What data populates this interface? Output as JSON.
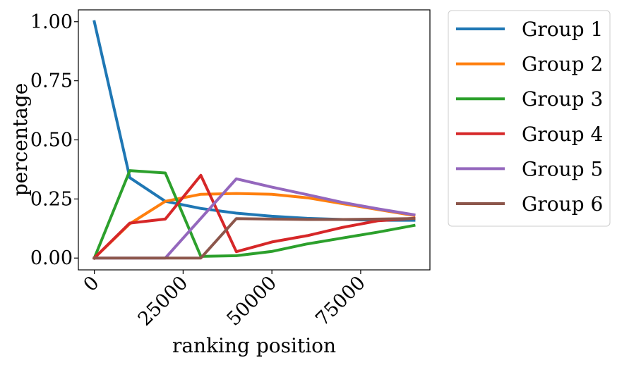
{
  "chart_data": {
    "type": "line",
    "xlabel": "ranking position",
    "ylabel": "percentage",
    "xlim": [
      -4500,
      94500
    ],
    "ylim": [
      -0.05,
      1.05
    ],
    "xticks": [
      0,
      25000,
      50000,
      75000
    ],
    "xtick_labels": [
      "0",
      "25000",
      "50000",
      "75000"
    ],
    "yticks": [
      0.0,
      0.25,
      0.5,
      0.75,
      1.0
    ],
    "ytick_labels": [
      "0.00",
      "0.25",
      "0.50",
      "0.75",
      "1.00"
    ],
    "grid": false,
    "legend_position": "outside-right-top",
    "series": [
      {
        "name": "Group 1",
        "color": "#1f77b4",
        "x": [
          0,
          10000,
          20000,
          30000,
          40000,
          50000,
          60000,
          70000,
          80000,
          90000
        ],
        "y": [
          1.0,
          0.34,
          0.24,
          0.21,
          0.19,
          0.177,
          0.168,
          0.163,
          0.16,
          0.16
        ]
      },
      {
        "name": "Group 2",
        "color": "#ff7f0e",
        "x": [
          0,
          10000,
          20000,
          30000,
          40000,
          50000,
          60000,
          70000,
          80000,
          90000
        ],
        "y": [
          0.0,
          0.145,
          0.24,
          0.27,
          0.273,
          0.27,
          0.255,
          0.23,
          0.205,
          0.18
        ]
      },
      {
        "name": "Group 3",
        "color": "#2ca02c",
        "x": [
          0,
          10000,
          20000,
          30000,
          40000,
          50000,
          60000,
          70000,
          80000,
          90000
        ],
        "y": [
          0.0,
          0.37,
          0.36,
          0.007,
          0.01,
          0.028,
          0.06,
          0.085,
          0.11,
          0.138
        ]
      },
      {
        "name": "Group 4",
        "color": "#d62728",
        "x": [
          0,
          10000,
          20000,
          30000,
          40000,
          50000,
          60000,
          70000,
          80000,
          90000
        ],
        "y": [
          0.0,
          0.148,
          0.165,
          0.35,
          0.027,
          0.068,
          0.095,
          0.13,
          0.158,
          0.168
        ]
      },
      {
        "name": "Group 5",
        "color": "#9467bd",
        "x": [
          0,
          10000,
          20000,
          30000,
          40000,
          50000,
          60000,
          70000,
          80000,
          90000
        ],
        "y": [
          0.0,
          0.0,
          0.0,
          0.168,
          0.335,
          0.3,
          0.268,
          0.235,
          0.208,
          0.183
        ]
      },
      {
        "name": "Group 6",
        "color": "#8c564b",
        "x": [
          0,
          10000,
          20000,
          30000,
          40000,
          50000,
          60000,
          70000,
          80000,
          90000
        ],
        "y": [
          0.0,
          0.0,
          0.0,
          0.0,
          0.167,
          0.165,
          0.163,
          0.163,
          0.165,
          0.167
        ]
      }
    ]
  }
}
